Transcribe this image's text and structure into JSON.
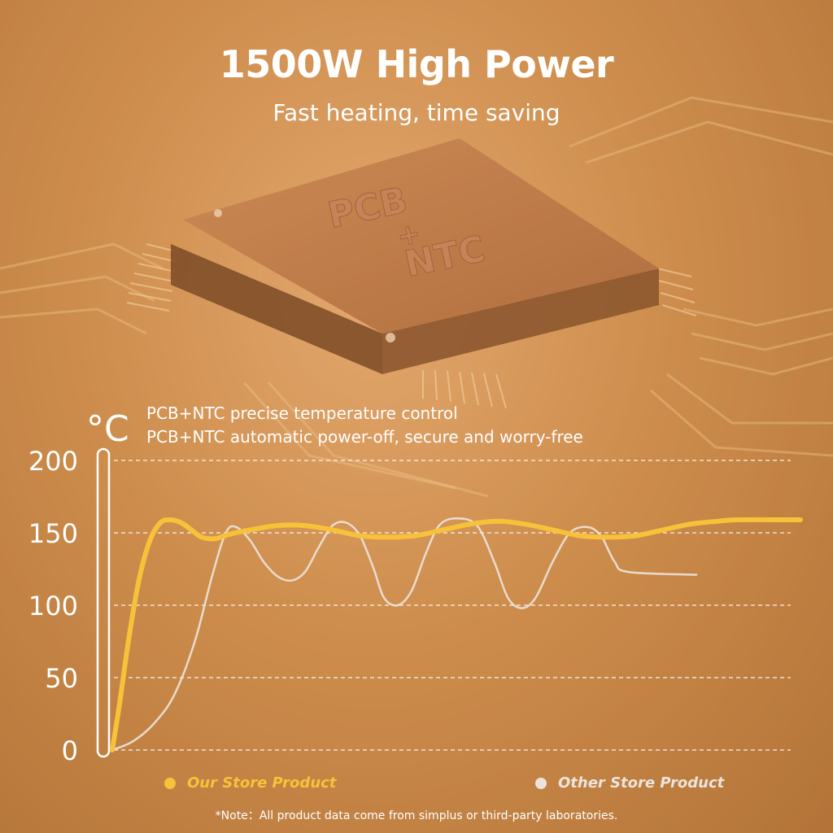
{
  "header": {
    "title": "1500W High Power",
    "subtitle": "Fast heating, time saving"
  },
  "chip": {
    "label_top": "PCB",
    "label_plus": "+",
    "label_bottom": "NTC"
  },
  "notes": [
    "PCB+NTC precise  temperature control",
    "PCB+NTC automatic power-off, secure and worry-free"
  ],
  "footnote": "*Note：All product data come from simplus or  third-party laboratories.",
  "colors": {
    "accent": "#f7c23a",
    "other": "#ece4dc",
    "text": "#ffffff"
  },
  "chart_data": {
    "type": "line",
    "unit_label": "°C",
    "y_ticks": [
      "200",
      "150",
      "100",
      "50",
      "0"
    ],
    "ylim": [
      0,
      200
    ],
    "xlim": [
      0,
      100
    ],
    "grid": true,
    "legend_position": "bottom",
    "series": [
      {
        "name": "Our Store Product",
        "color": "#f7c23a",
        "points": [
          [
            0,
            0
          ],
          [
            1,
            30
          ],
          [
            2.5,
            80
          ],
          [
            4,
            120
          ],
          [
            5.5,
            145
          ],
          [
            7,
            157
          ],
          [
            8.5,
            159
          ],
          [
            10,
            157
          ],
          [
            11.5,
            152
          ],
          [
            13,
            147
          ],
          [
            15,
            146
          ],
          [
            17,
            149
          ],
          [
            20,
            152
          ],
          [
            24,
            155
          ],
          [
            28,
            155
          ],
          [
            32,
            152
          ],
          [
            36,
            148
          ],
          [
            40,
            147
          ],
          [
            44,
            148
          ],
          [
            48,
            152
          ],
          [
            52,
            156
          ],
          [
            56,
            158
          ],
          [
            60,
            156
          ],
          [
            64,
            152
          ],
          [
            68,
            148
          ],
          [
            72,
            147
          ],
          [
            76,
            148
          ],
          [
            80,
            152
          ],
          [
            84,
            156
          ],
          [
            88,
            158
          ],
          [
            91,
            159
          ],
          [
            100,
            159
          ]
        ]
      },
      {
        "name": "Other Store Product",
        "color": "#ece4dc",
        "points": [
          [
            0,
            0
          ],
          [
            3,
            6
          ],
          [
            6,
            18
          ],
          [
            9,
            38
          ],
          [
            12,
            75
          ],
          [
            14.5,
            120
          ],
          [
            16.5,
            150
          ],
          [
            18,
            154
          ],
          [
            20,
            145
          ],
          [
            22,
            130
          ],
          [
            24,
            120
          ],
          [
            26,
            117
          ],
          [
            28,
            123
          ],
          [
            30,
            140
          ],
          [
            32,
            155
          ],
          [
            34,
            157
          ],
          [
            36,
            148
          ],
          [
            38,
            125
          ],
          [
            39.5,
            105
          ],
          [
            41.5,
            100
          ],
          [
            43.5,
            110
          ],
          [
            45.5,
            135
          ],
          [
            47.5,
            155
          ],
          [
            50,
            160
          ],
          [
            53,
            155
          ],
          [
            55.5,
            130
          ],
          [
            57.5,
            105
          ],
          [
            59.5,
            98
          ],
          [
            61.5,
            105
          ],
          [
            64,
            130
          ],
          [
            66.5,
            150
          ],
          [
            69,
            154
          ],
          [
            71,
            148
          ],
          [
            73,
            130
          ],
          [
            75,
            123
          ],
          [
            85,
            121
          ]
        ]
      }
    ]
  }
}
